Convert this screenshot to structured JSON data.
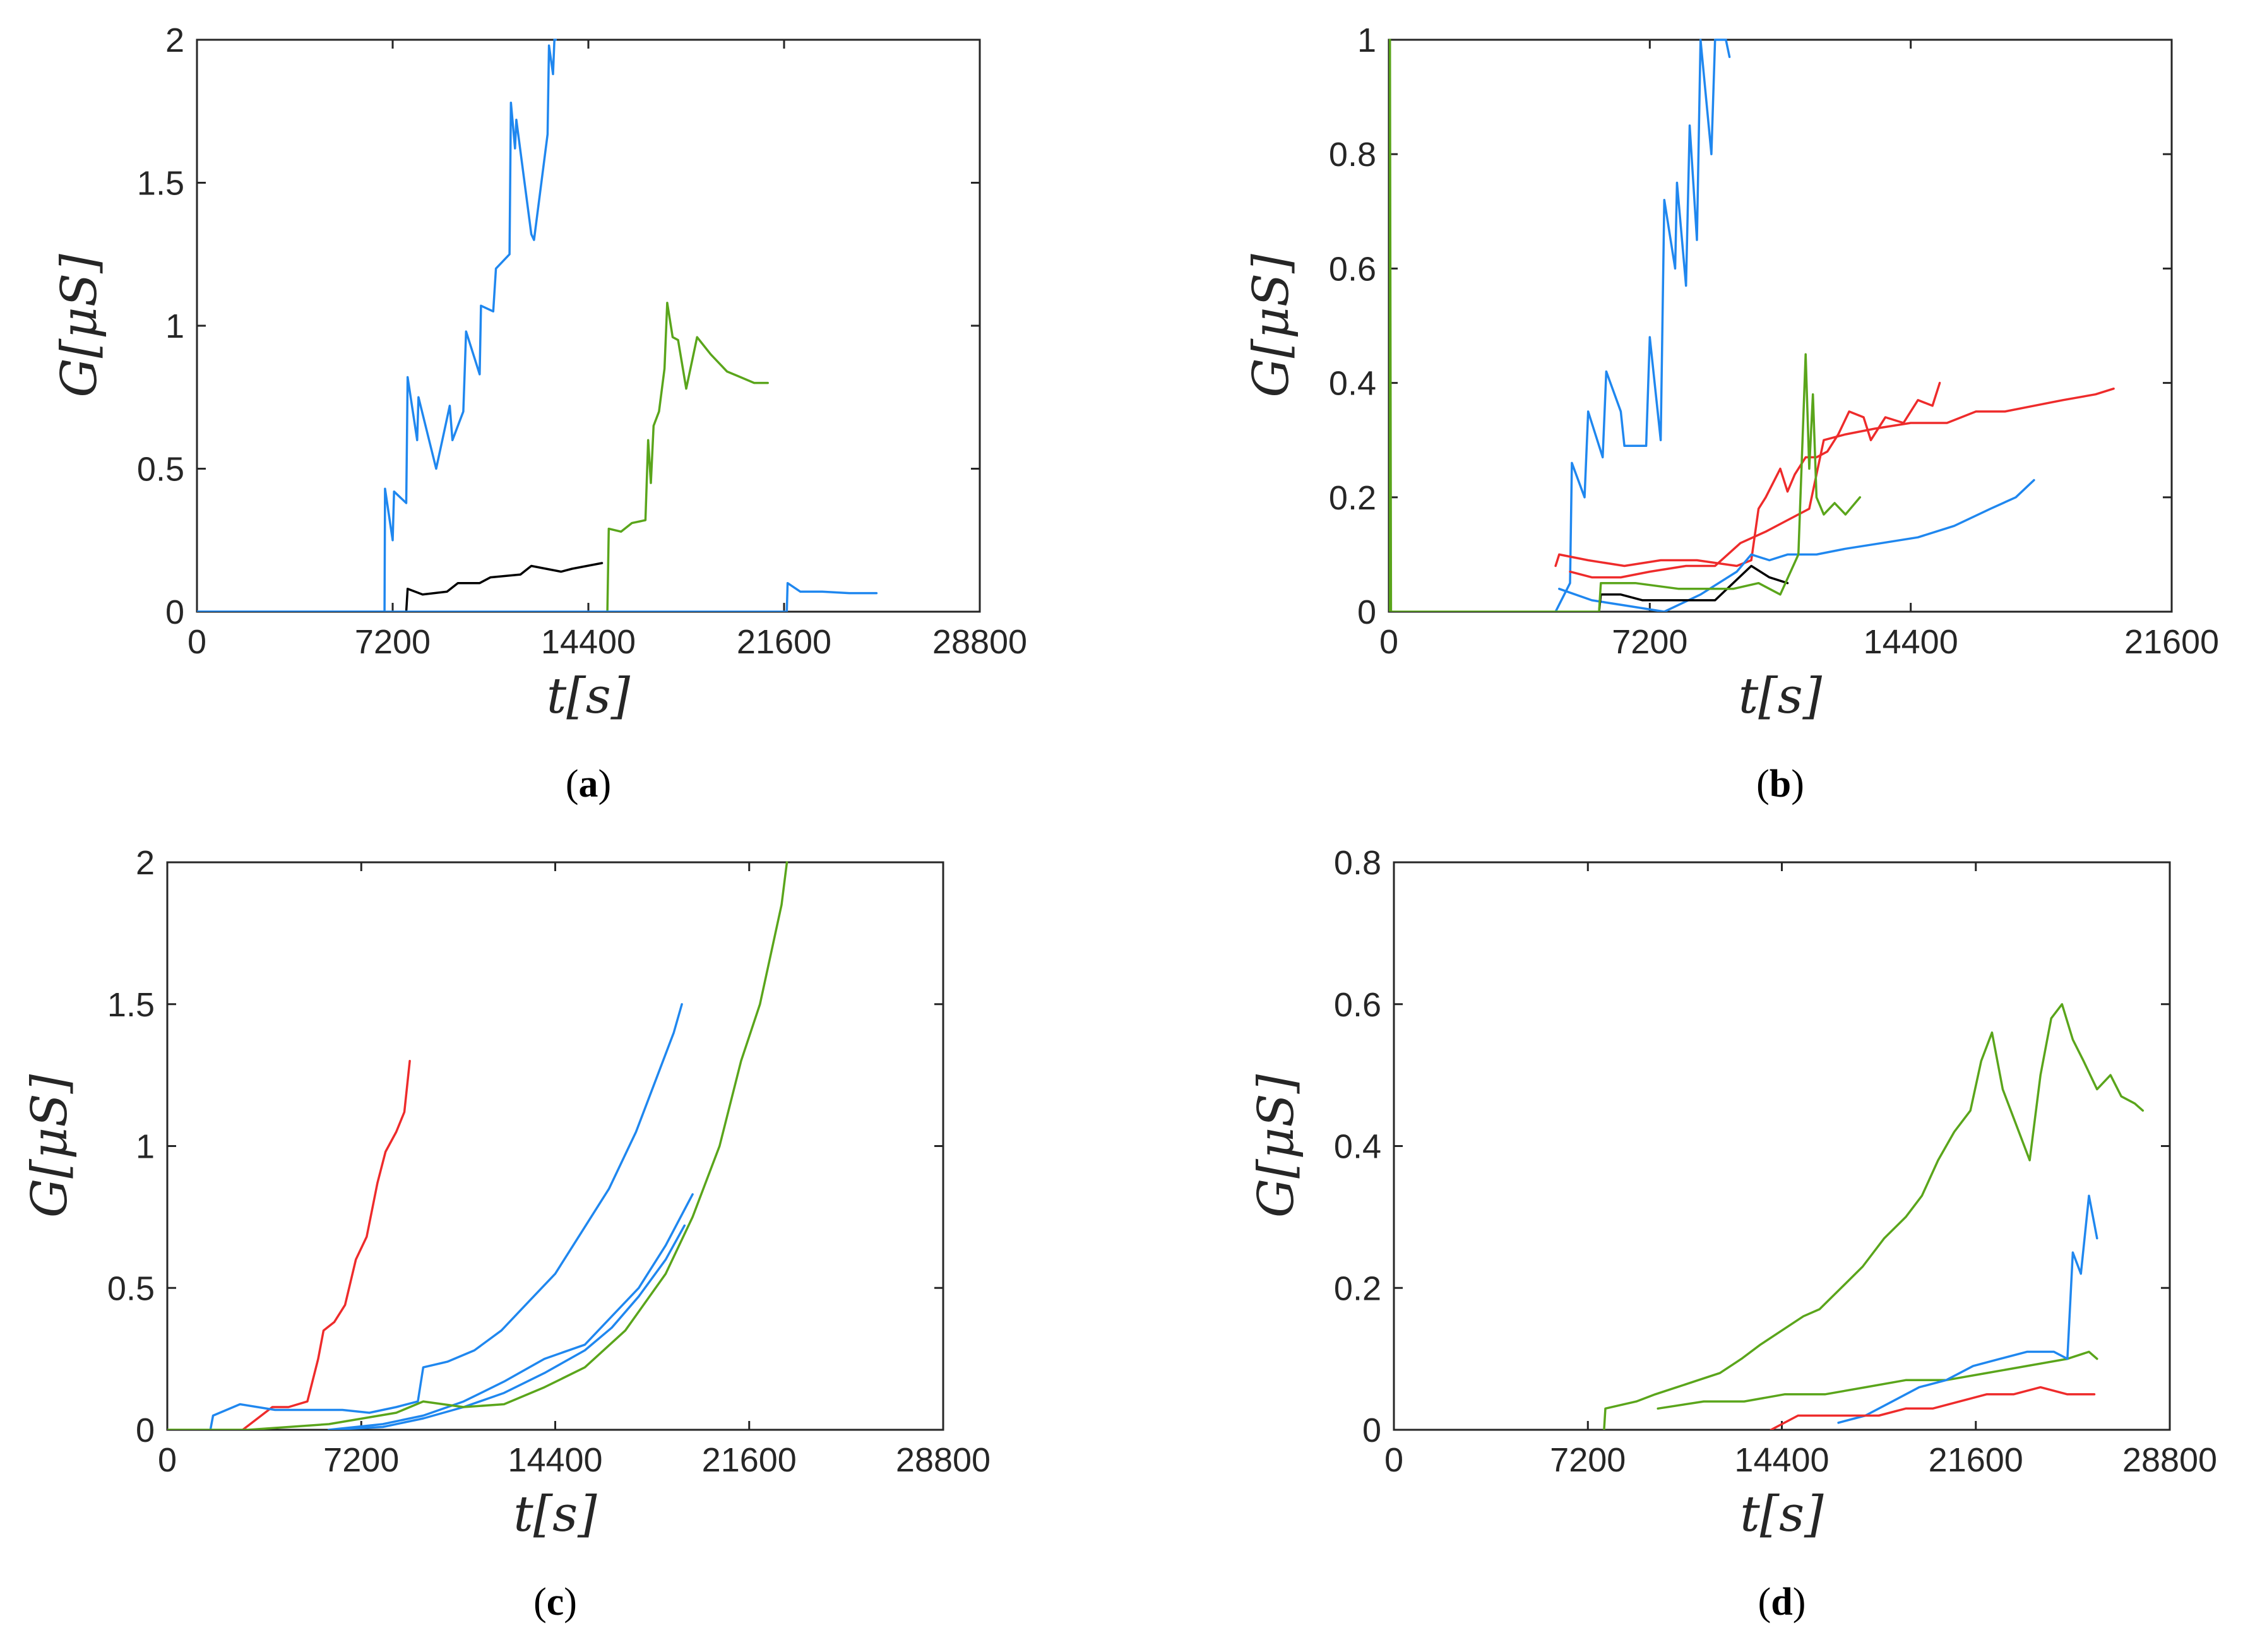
{
  "colors": {
    "blue": "#1f87ef",
    "green": "#5aa51b",
    "red": "#ee2b2b",
    "black": "#000000",
    "axis": "#262626"
  },
  "chart_data": [
    {
      "panel": "a",
      "caption": "(a)",
      "caption_letter": "a",
      "type": "line",
      "title": "",
      "xlabel": "t[s]",
      "ylabel": "G[μS]",
      "xlim": [
        0,
        28800
      ],
      "ylim": [
        0,
        2
      ],
      "xticks": [
        0,
        7200,
        14400,
        21600,
        28800
      ],
      "yticks": [
        0,
        0.5,
        1,
        1.5,
        2
      ],
      "ytick_labels": [
        "0",
        "0.5",
        "1",
        "1.5",
        "2"
      ],
      "xtick_labels": [
        "0",
        "7200",
        "14400",
        "21600",
        "28800"
      ],
      "grid": false,
      "legend": "none",
      "series": [
        {
          "name": "blue-1",
          "color": "blue",
          "x": [
            0,
            6900,
            6920,
            7200,
            7250,
            7700,
            7750,
            8100,
            8150,
            8800,
            9300,
            9400,
            9800,
            9900,
            10400,
            10450,
            10900,
            11000,
            11500,
            11550,
            11700,
            11750,
            12300,
            12400,
            12900,
            12950,
            13100,
            13150,
            13200
          ],
          "y": [
            0,
            0,
            0.43,
            0.25,
            0.42,
            0.38,
            0.82,
            0.6,
            0.75,
            0.5,
            0.72,
            0.6,
            0.7,
            0.98,
            0.83,
            1.07,
            1.05,
            1.2,
            1.25,
            1.78,
            1.62,
            1.72,
            1.32,
            1.3,
            1.67,
            1.98,
            1.88,
            2.0,
            2.0
          ]
        },
        {
          "name": "black-1",
          "color": "black",
          "x": [
            7700,
            7750,
            8300,
            9200,
            9600,
            10400,
            10800,
            11900,
            12300,
            13400,
            13800,
            14900
          ],
          "y": [
            0,
            0.08,
            0.06,
            0.07,
            0.1,
            0.1,
            0.12,
            0.13,
            0.16,
            0.14,
            0.15,
            0.17
          ]
        },
        {
          "name": "green-1",
          "color": "green",
          "x": [
            15100,
            15150,
            15600,
            16000,
            16500,
            16600,
            16700,
            16800,
            17000,
            17200,
            17300,
            17500,
            17700,
            18000,
            18400,
            18900,
            19500,
            20000,
            20500,
            21000
          ],
          "y": [
            0,
            0.29,
            0.28,
            0.31,
            0.32,
            0.6,
            0.45,
            0.65,
            0.7,
            0.85,
            1.08,
            0.96,
            0.95,
            0.78,
            0.96,
            0.9,
            0.84,
            0.82,
            0.8,
            0.8
          ]
        },
        {
          "name": "blue-2",
          "color": "blue",
          "x": [
            0,
            21700,
            21730,
            22200,
            23000,
            24000,
            25000
          ],
          "y": [
            0,
            0,
            0.1,
            0.07,
            0.07,
            0.065,
            0.065
          ]
        }
      ]
    },
    {
      "panel": "b",
      "caption": "(b)",
      "caption_letter": "b",
      "type": "line",
      "title": "",
      "xlabel": "t[s]",
      "ylabel": "G[μS]",
      "xlim": [
        0,
        21600
      ],
      "ylim": [
        0,
        1
      ],
      "xticks": [
        0,
        7200,
        14400,
        21600
      ],
      "yticks": [
        0,
        0.2,
        0.4,
        0.6,
        0.8,
        1
      ],
      "ytick_labels": [
        "0",
        "0.2",
        "0.4",
        "0.6",
        "0.8",
        "1"
      ],
      "xtick_labels": [
        "0",
        "7200",
        "14400",
        "21600"
      ],
      "grid": false,
      "legend": "none",
      "series": [
        {
          "name": "blue-1",
          "color": "blue",
          "x": [
            4600,
            5000,
            5050,
            5400,
            5500,
            5900,
            6000,
            6400,
            6500,
            7100,
            7200,
            7500,
            7600,
            7900,
            7950,
            8200,
            8300,
            8500,
            8600,
            8900,
            9000,
            9300,
            9400
          ],
          "y": [
            0,
            0.05,
            0.26,
            0.2,
            0.35,
            0.27,
            0.42,
            0.35,
            0.29,
            0.29,
            0.48,
            0.3,
            0.72,
            0.6,
            0.75,
            0.57,
            0.85,
            0.65,
            1.0,
            0.8,
            1.0,
            1.0,
            0.97
          ]
        },
        {
          "name": "red-1",
          "color": "red",
          "x": [
            4600,
            4700,
            5500,
            6500,
            7500,
            8500,
            9600,
            10000,
            10200,
            10400,
            10800,
            11000,
            11200,
            11500,
            11800,
            12100,
            12400,
            12700,
            13100,
            13300,
            13700,
            14200,
            14600,
            15000,
            15200
          ],
          "y": [
            0.08,
            0.1,
            0.09,
            0.08,
            0.09,
            0.09,
            0.08,
            0.09,
            0.18,
            0.2,
            0.25,
            0.21,
            0.24,
            0.27,
            0.27,
            0.28,
            0.31,
            0.35,
            0.34,
            0.3,
            0.34,
            0.33,
            0.37,
            0.36,
            0.4
          ]
        },
        {
          "name": "red-2",
          "color": "red",
          "x": [
            5000,
            5600,
            6400,
            7200,
            8200,
            9000,
            9700,
            10400,
            11000,
            11600,
            12000,
            12600,
            13400,
            14400,
            15400,
            16200,
            17000,
            17800,
            18600,
            19500,
            20000
          ],
          "y": [
            0.07,
            0.06,
            0.06,
            0.07,
            0.08,
            0.08,
            0.12,
            0.14,
            0.16,
            0.18,
            0.3,
            0.31,
            0.32,
            0.33,
            0.33,
            0.35,
            0.35,
            0.36,
            0.37,
            0.38,
            0.39
          ]
        },
        {
          "name": "blue-2",
          "color": "blue",
          "x": [
            4700,
            5600,
            6600,
            7600,
            8600,
            9600,
            10000,
            10500,
            11000,
            11800,
            12600,
            13600,
            14600,
            15600,
            16600,
            17300,
            17800
          ],
          "y": [
            0.04,
            0.02,
            0.01,
            0.0,
            0.03,
            0.07,
            0.1,
            0.09,
            0.1,
            0.1,
            0.11,
            0.12,
            0.13,
            0.15,
            0.18,
            0.2,
            0.23
          ]
        },
        {
          "name": "black-1",
          "color": "black",
          "x": [
            5800,
            5850,
            6400,
            7000,
            8000,
            9000,
            10000,
            10500,
            11000
          ],
          "y": [
            0,
            0.03,
            0.03,
            0.02,
            0.02,
            0.02,
            0.08,
            0.06,
            0.05
          ]
        },
        {
          "name": "green-1",
          "color": "green",
          "x": [
            0,
            30,
            60,
            5800,
            5850,
            6800,
            8000,
            9500,
            10200,
            10800,
            11300,
            11500,
            11600,
            11700,
            11800,
            12000,
            12300,
            12600,
            13000
          ],
          "y": [
            0,
            1.0,
            0,
            0,
            0.05,
            0.05,
            0.04,
            0.04,
            0.05,
            0.03,
            0.1,
            0.45,
            0.25,
            0.38,
            0.2,
            0.17,
            0.19,
            0.17,
            0.2
          ]
        }
      ]
    },
    {
      "panel": "c",
      "caption": "(c)",
      "caption_letter": "c",
      "type": "line",
      "title": "",
      "xlabel": "t[s]",
      "ylabel": "G[μS]",
      "xlim": [
        0,
        28800
      ],
      "ylim": [
        0,
        2
      ],
      "xticks": [
        0,
        7200,
        14400,
        21600,
        28800
      ],
      "yticks": [
        0,
        0.5,
        1,
        1.5,
        2
      ],
      "ytick_labels": [
        "0",
        "0.5",
        "1",
        "1.5",
        "2"
      ],
      "xtick_labels": [
        "0",
        "7200",
        "14400",
        "21600",
        "28800"
      ],
      "grid": false,
      "legend": "none",
      "series": [
        {
          "name": "red-1",
          "color": "red",
          "x": [
            2800,
            3900,
            4500,
            5200,
            5600,
            5800,
            6200,
            6600,
            7000,
            7400,
            7800,
            8100,
            8500,
            8800,
            9000
          ],
          "y": [
            0,
            0.08,
            0.08,
            0.1,
            0.25,
            0.35,
            0.38,
            0.44,
            0.6,
            0.68,
            0.87,
            0.98,
            1.05,
            1.12,
            1.3
          ]
        },
        {
          "name": "blue-1",
          "color": "blue",
          "x": [
            1600,
            1700,
            2700,
            4000,
            5500,
            6500,
            7500,
            8500,
            9300,
            9500,
            10400,
            11400,
            12400,
            13400,
            14400,
            15400,
            16400,
            17400,
            18200,
            18800,
            19100
          ],
          "y": [
            0,
            0.05,
            0.09,
            0.07,
            0.07,
            0.07,
            0.06,
            0.08,
            0.1,
            0.22,
            0.24,
            0.28,
            0.35,
            0.45,
            0.55,
            0.7,
            0.85,
            1.05,
            1.25,
            1.4,
            1.5
          ]
        },
        {
          "name": "blue-2",
          "color": "blue",
          "x": [
            6000,
            8000,
            9500,
            11000,
            12500,
            14000,
            15500,
            16500,
            17500,
            18500,
            19500
          ],
          "y": [
            0,
            0.02,
            0.05,
            0.1,
            0.17,
            0.25,
            0.3,
            0.4,
            0.5,
            0.65,
            0.83
          ]
        },
        {
          "name": "blue-3",
          "color": "blue",
          "x": [
            6000,
            8000,
            9500,
            11000,
            12500,
            14000,
            15500,
            16500,
            17500,
            18500,
            19200
          ],
          "y": [
            0,
            0.01,
            0.04,
            0.08,
            0.13,
            0.2,
            0.28,
            0.36,
            0.47,
            0.6,
            0.72
          ]
        },
        {
          "name": "green-1",
          "color": "green",
          "x": [
            0,
            3000,
            6000,
            8500,
            9500,
            11000,
            12500,
            14000,
            15500,
            17000,
            18500,
            19500,
            20500,
            21300,
            22000,
            22800,
            23000
          ],
          "y": [
            0,
            0,
            0.02,
            0.06,
            0.1,
            0.08,
            0.09,
            0.15,
            0.22,
            0.35,
            0.55,
            0.75,
            1.0,
            1.3,
            1.5,
            1.85,
            2.0
          ]
        }
      ]
    },
    {
      "panel": "d",
      "caption": "(d)",
      "caption_letter": "d",
      "type": "line",
      "title": "",
      "xlabel": "t[s]",
      "ylabel": "G[μS]",
      "xlim": [
        0,
        28800
      ],
      "ylim": [
        0,
        0.8
      ],
      "xticks": [
        0,
        7200,
        14400,
        21600,
        28800
      ],
      "yticks": [
        0,
        0.2,
        0.4,
        0.6,
        0.8
      ],
      "ytick_labels": [
        "0",
        "0.2",
        "0.4",
        "0.6",
        "0.8"
      ],
      "xtick_labels": [
        "0",
        "7200",
        "14400",
        "21600",
        "28800"
      ],
      "grid": false,
      "legend": "none",
      "series": [
        {
          "name": "green-1",
          "color": "green",
          "x": [
            7800,
            7850,
            9000,
            9700,
            10500,
            11300,
            12100,
            12900,
            13600,
            14400,
            15200,
            15800,
            16600,
            17400,
            18200,
            19000,
            19600,
            20200,
            20800,
            21400,
            21800,
            22200,
            22600,
            23200,
            23600,
            24000,
            24400,
            24800,
            25200,
            25600,
            26100,
            26600,
            27000,
            27500,
            27800
          ],
          "y": [
            0,
            0.03,
            0.04,
            0.05,
            0.06,
            0.07,
            0.08,
            0.1,
            0.12,
            0.14,
            0.16,
            0.17,
            0.2,
            0.23,
            0.27,
            0.3,
            0.33,
            0.38,
            0.42,
            0.45,
            0.52,
            0.56,
            0.48,
            0.42,
            0.38,
            0.5,
            0.58,
            0.6,
            0.55,
            0.52,
            0.48,
            0.5,
            0.47,
            0.46,
            0.45
          ]
        },
        {
          "name": "green-2",
          "color": "green",
          "x": [
            9800,
            11500,
            13000,
            14500,
            16000,
            17500,
            19000,
            20500,
            22000,
            23500,
            25000,
            25800,
            26100
          ],
          "y": [
            0.03,
            0.04,
            0.04,
            0.05,
            0.05,
            0.06,
            0.07,
            0.07,
            0.08,
            0.09,
            0.1,
            0.11,
            0.1
          ]
        },
        {
          "name": "blue-1",
          "color": "blue",
          "x": [
            16500,
            17500,
            18500,
            19500,
            20500,
            21500,
            22500,
            23500,
            24500,
            25000,
            25200,
            25500,
            25800,
            26100
          ],
          "y": [
            0.01,
            0.02,
            0.04,
            0.06,
            0.07,
            0.09,
            0.1,
            0.11,
            0.11,
            0.1,
            0.25,
            0.22,
            0.33,
            0.27
          ]
        },
        {
          "name": "red-1",
          "color": "red",
          "x": [
            14000,
            15000,
            16000,
            17000,
            18000,
            19000,
            20000,
            21000,
            22000,
            23000,
            24000,
            25000,
            26000
          ],
          "y": [
            0,
            0.02,
            0.02,
            0.02,
            0.02,
            0.03,
            0.03,
            0.04,
            0.05,
            0.05,
            0.06,
            0.05,
            0.05
          ]
        }
      ]
    }
  ]
}
